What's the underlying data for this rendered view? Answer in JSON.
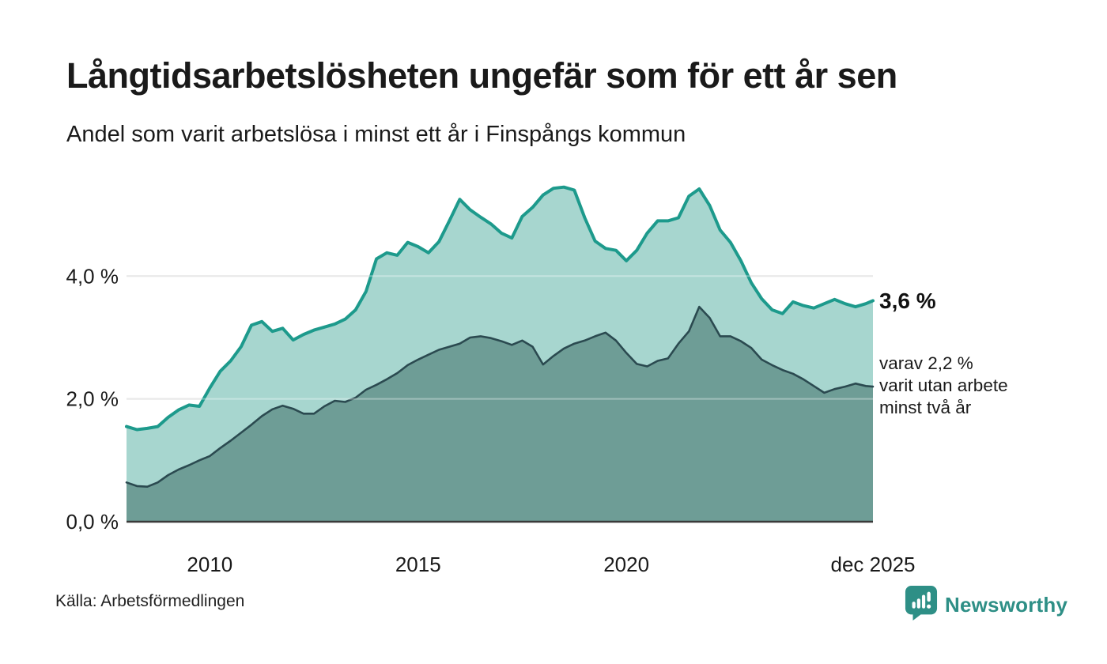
{
  "header": {
    "title": "Långtidsarbetslösheten ungefär som för ett år sen",
    "subtitle": "Andel som varit arbetslösa i minst ett år i Finspångs kommun"
  },
  "chart_data": {
    "type": "area",
    "title": "Långtidsarbetslösheten ungefär som för ett år sen",
    "subtitle": "Andel som varit arbetslösa i minst ett år i Finspångs kommun",
    "xlabel": "",
    "ylabel": "",
    "xlim": [
      2008.0,
      2025.92
    ],
    "ylim": [
      0,
      5.6
    ],
    "grid": true,
    "legend_position": "none",
    "x": [
      2008.0,
      2008.25,
      2008.5,
      2008.75,
      2009.0,
      2009.25,
      2009.5,
      2009.75,
      2010.0,
      2010.25,
      2010.5,
      2010.75,
      2011.0,
      2011.25,
      2011.5,
      2011.75,
      2012.0,
      2012.25,
      2012.5,
      2012.75,
      2013.0,
      2013.25,
      2013.5,
      2013.75,
      2014.0,
      2014.25,
      2014.5,
      2014.75,
      2015.0,
      2015.25,
      2015.5,
      2015.75,
      2016.0,
      2016.25,
      2016.5,
      2016.75,
      2017.0,
      2017.25,
      2017.5,
      2017.75,
      2018.0,
      2018.25,
      2018.5,
      2018.75,
      2019.0,
      2019.25,
      2019.5,
      2019.75,
      2020.0,
      2020.25,
      2020.5,
      2020.75,
      2021.0,
      2021.25,
      2021.5,
      2021.75,
      2022.0,
      2022.25,
      2022.5,
      2022.75,
      2023.0,
      2023.25,
      2023.5,
      2023.75,
      2024.0,
      2024.25,
      2024.5,
      2024.75,
      2025.0,
      2025.25,
      2025.5,
      2025.75,
      2025.92
    ],
    "series": [
      {
        "name": "Andel som varit arbetslösa minst ett år",
        "line_color": "#1d9a8c",
        "fill_color": "#a7d6cf",
        "line_width": 4,
        "latest_value_label": "3,6 %",
        "values": [
          1.55,
          1.5,
          1.52,
          1.55,
          1.7,
          1.82,
          1.9,
          1.88,
          2.18,
          2.45,
          2.62,
          2.85,
          3.2,
          3.26,
          3.1,
          3.15,
          2.96,
          3.05,
          3.12,
          3.17,
          3.22,
          3.3,
          3.45,
          3.75,
          4.28,
          4.38,
          4.34,
          4.55,
          4.48,
          4.38,
          4.56,
          4.9,
          5.25,
          5.08,
          4.96,
          4.85,
          4.7,
          4.62,
          4.97,
          5.12,
          5.32,
          5.43,
          5.45,
          5.4,
          4.95,
          4.57,
          4.45,
          4.42,
          4.25,
          4.42,
          4.7,
          4.9,
          4.9,
          4.95,
          5.3,
          5.42,
          5.15,
          4.75,
          4.55,
          4.25,
          3.89,
          3.63,
          3.45,
          3.39,
          3.58,
          3.52,
          3.48,
          3.55,
          3.62,
          3.55,
          3.5,
          3.55,
          3.6
        ]
      },
      {
        "name": "varav varit utan arbete minst två år",
        "line_color": "#2b4a50",
        "fill_color": "#6e9d96",
        "line_width": 2.6,
        "latest_value_label": "2,2 %",
        "values": [
          0.64,
          0.58,
          0.57,
          0.64,
          0.76,
          0.85,
          0.92,
          1.0,
          1.07,
          1.2,
          1.32,
          1.45,
          1.58,
          1.72,
          1.83,
          1.89,
          1.84,
          1.76,
          1.76,
          1.88,
          1.97,
          1.95,
          2.02,
          2.15,
          2.23,
          2.32,
          2.42,
          2.55,
          2.64,
          2.72,
          2.8,
          2.85,
          2.9,
          3.0,
          3.02,
          2.99,
          2.94,
          2.88,
          2.95,
          2.85,
          2.56,
          2.7,
          2.82,
          2.9,
          2.95,
          3.02,
          3.08,
          2.95,
          2.75,
          2.57,
          2.53,
          2.62,
          2.66,
          2.9,
          3.1,
          3.5,
          3.32,
          3.02,
          3.02,
          2.94,
          2.83,
          2.64,
          2.55,
          2.47,
          2.41,
          2.32,
          2.21,
          2.1,
          2.16,
          2.2,
          2.25,
          2.21,
          2.2
        ]
      }
    ],
    "xticks": [
      {
        "label": "2010",
        "x": 2010
      },
      {
        "label": "2015",
        "x": 2015
      },
      {
        "label": "2020",
        "x": 2020
      },
      {
        "label": "dec 2025",
        "x": 2025.92
      }
    ],
    "yticks": [
      {
        "label": "0,0 %",
        "value": 0
      },
      {
        "label": "2,0 %",
        "value": 2
      },
      {
        "label": "4,0 %",
        "value": 4
      }
    ]
  },
  "annotations": {
    "latest_total": "3,6 %",
    "latest_two_years_lines": [
      "varav 2,2 %",
      "varit utan arbete",
      "minst två år"
    ]
  },
  "footer": {
    "source": "Källa: Arbetsförmedlingen",
    "brand_name": "Newsworthy"
  },
  "colors": {
    "accent_teal": "#1d9a8c",
    "fill_light": "#a7d6cf",
    "fill_dark": "#6e9d96",
    "line_dark": "#2b4a50",
    "gridline": "#dcdcdc",
    "axis_line": "#3a3a3a",
    "text": "#1a1a1a",
    "brand_teal": "#2e8f86"
  }
}
